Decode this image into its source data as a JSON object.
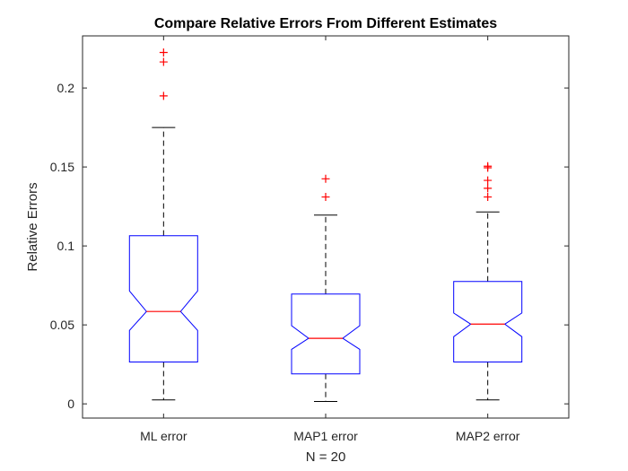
{
  "chart_data": {
    "type": "boxplot",
    "title": "Compare Relative Errors From Different Estimates",
    "xlabel": "N = 20",
    "ylabel": "Relative Errors",
    "ylim": [
      -0.009,
      0.233
    ],
    "yticks": [
      0,
      0.05,
      0.1,
      0.15,
      0.2
    ],
    "ytick_labels": [
      "0",
      "0.05",
      "0.1",
      "0.15",
      "0.2"
    ],
    "grid": false,
    "notched": true,
    "colors": {
      "box": "#0000ff",
      "median": "#ff0000",
      "whisker": "#000000",
      "outlier": "#ff0000",
      "axis": "#262626"
    },
    "boxes": [
      {
        "label": "ML error",
        "whisker_low": 0.0025,
        "q1": 0.0265,
        "median": 0.0585,
        "q3": 0.1065,
        "whisker_high": 0.175,
        "notch_low": 0.0465,
        "notch_high": 0.0715,
        "outliers": [
          0.195,
          0.2165,
          0.2225
        ]
      },
      {
        "label": "MAP1 error",
        "whisker_low": 0.0015,
        "q1": 0.019,
        "median": 0.0415,
        "q3": 0.0695,
        "whisker_high": 0.1195,
        "notch_low": 0.0345,
        "notch_high": 0.0495,
        "outliers": [
          0.131,
          0.1425
        ]
      },
      {
        "label": "MAP2 error",
        "whisker_low": 0.0025,
        "q1": 0.0265,
        "median": 0.0505,
        "q3": 0.0775,
        "whisker_high": 0.1215,
        "notch_low": 0.0425,
        "notch_high": 0.0575,
        "outliers": [
          0.131,
          0.1365,
          0.1415,
          0.1495,
          0.1505
        ]
      }
    ]
  }
}
